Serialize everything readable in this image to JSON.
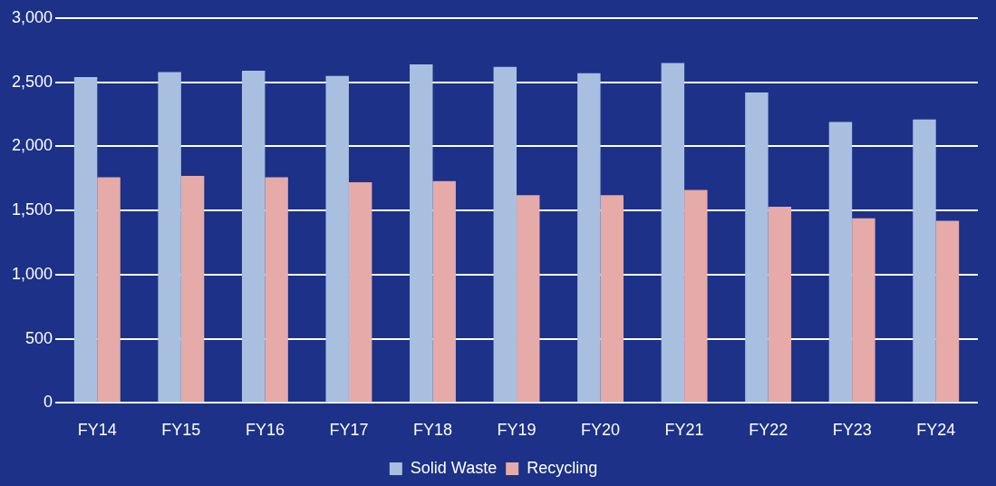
{
  "chart_data": {
    "type": "bar",
    "categories": [
      "FY14",
      "FY15",
      "FY16",
      "FY17",
      "FY18",
      "FY19",
      "FY20",
      "FY21",
      "FY22",
      "FY23",
      "FY24"
    ],
    "series": [
      {
        "name": "Solid Waste",
        "color": "#a9bfe0",
        "values": [
          2540,
          2580,
          2590,
          2550,
          2640,
          2620,
          2570,
          2650,
          2420,
          2190,
          2210
        ]
      },
      {
        "name": "Recycling",
        "color": "#e6aaa8",
        "values": [
          1760,
          1770,
          1760,
          1720,
          1730,
          1620,
          1620,
          1660,
          1530,
          1440,
          1420
        ]
      }
    ],
    "ylim": [
      0,
      3000
    ],
    "yticks": [
      {
        "value": 0,
        "label": "0"
      },
      {
        "value": 500,
        "label": "500"
      },
      {
        "value": 1000,
        "label": "1,000"
      },
      {
        "value": 1500,
        "label": "1,500"
      },
      {
        "value": 2000,
        "label": "2,000"
      },
      {
        "value": 2500,
        "label": "2,500"
      },
      {
        "value": 3000,
        "label": "3,000"
      }
    ],
    "grid": "y",
    "legend": "bottom"
  }
}
